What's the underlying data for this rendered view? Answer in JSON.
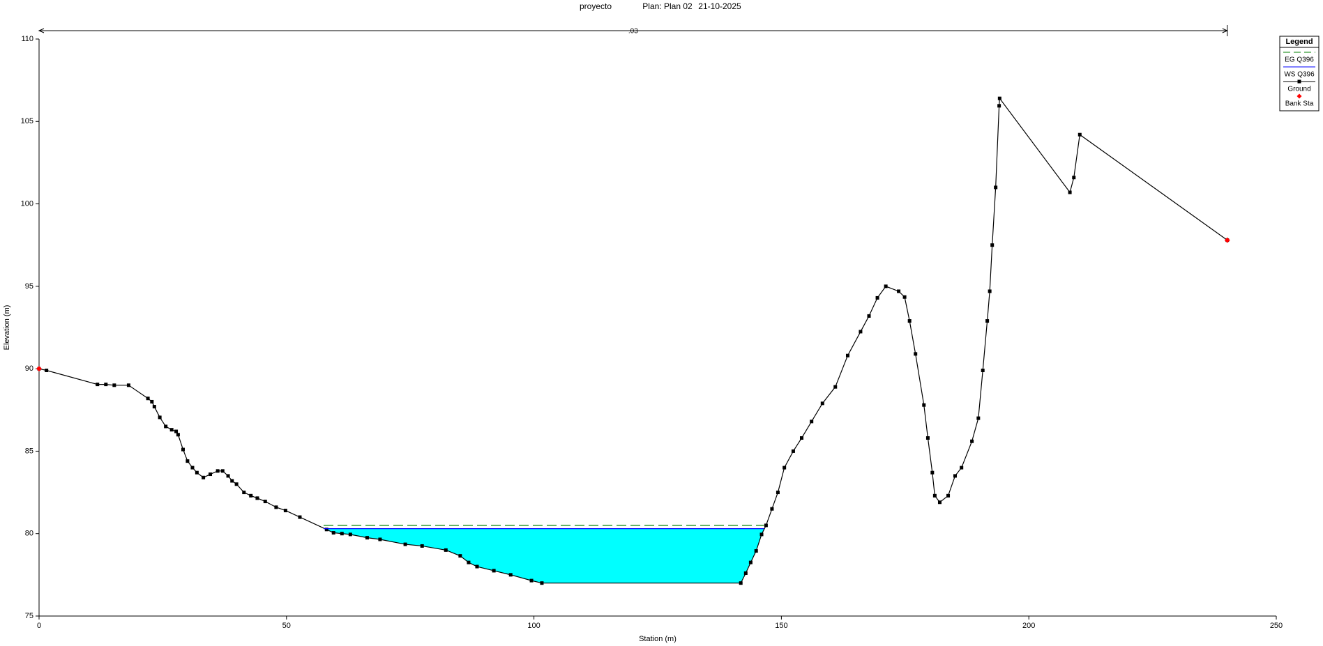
{
  "chart_data": {
    "type": "cross-section",
    "title_parts": [
      "proyecto",
      "Plan: Plan 02",
      "21-10-2025"
    ],
    "x_label": "Station (m)",
    "y_label": "Elevation (m)",
    "xlim": [
      0,
      250
    ],
    "xticks": [
      0,
      50,
      100,
      150,
      200,
      250
    ],
    "ylim": [
      75,
      110
    ],
    "yticks": [
      75,
      80,
      85,
      90,
      95,
      100,
      105,
      110
    ],
    "legend_title": "Legend",
    "legend_position": "upper right",
    "manning_n": {
      "label": ".03",
      "start": 0,
      "end": 240.1
    },
    "series": [
      {
        "name": "EG Q396",
        "color": "#008000",
        "style": "dashed",
        "x": [
          57.5,
          146.5
        ],
        "values": [
          80.5,
          80.5
        ]
      },
      {
        "name": "WS Q396",
        "color": "#0000ff",
        "fill": "#00ffff",
        "x": [
          57.5,
          146.5
        ],
        "values": [
          80.3,
          80.3
        ]
      },
      {
        "name": "Ground",
        "color": "#000000",
        "x": [
          0,
          1.5,
          11.8,
          13.5,
          15.2,
          18.1,
          22,
          22.8,
          23.3,
          24.4,
          25.6,
          26.8,
          27.7,
          28.1,
          29.1,
          30,
          31,
          31.9,
          33.2,
          34.6,
          36.1,
          37.1,
          38.2,
          39,
          39.9,
          41.4,
          42.8,
          44.1,
          45.7,
          47.9,
          49.8,
          52.7,
          58.1,
          59.5,
          61.2,
          62.9,
          66.3,
          68.9,
          74,
          77.4,
          82.2,
          85.1,
          86.8,
          88.5,
          91.9,
          95.3,
          99.5,
          101.6,
          141.8,
          142.8,
          143.8,
          144.9,
          146,
          146.9,
          148.1,
          149.3,
          150.6,
          152.4,
          154.1,
          156.1,
          158.3,
          160.9,
          163.4,
          166,
          167.7,
          169.4,
          171.1,
          173.7,
          174.9,
          175.9,
          177.1,
          178.8,
          179.6,
          180.5,
          181,
          182,
          183.7,
          185.1,
          186.4,
          188.5,
          189.8,
          190.7,
          191.6,
          192.1,
          192.6,
          193.3,
          194,
          194.1,
          208.3,
          209.1,
          210.3,
          240.1
        ],
        "values": [
          90.0,
          89.9,
          89.05,
          89.05,
          89.0,
          89.0,
          88.2,
          88.0,
          87.7,
          87.05,
          86.5,
          86.3,
          86.2,
          86.0,
          85.1,
          84.4,
          84.0,
          83.7,
          83.4,
          83.6,
          83.8,
          83.8,
          83.5,
          83.2,
          83.0,
          82.5,
          82.3,
          82.15,
          81.95,
          81.6,
          81.4,
          81.0,
          80.25,
          80.05,
          80.0,
          79.95,
          79.75,
          79.65,
          79.35,
          79.25,
          79.0,
          78.65,
          78.25,
          78.0,
          77.75,
          77.5,
          77.15,
          77.0,
          77.0,
          77.6,
          78.25,
          78.95,
          79.95,
          80.5,
          81.5,
          82.5,
          84.0,
          85.0,
          85.8,
          86.8,
          87.9,
          88.9,
          90.8,
          92.25,
          93.2,
          94.3,
          95.0,
          94.7,
          94.35,
          92.9,
          90.9,
          87.8,
          85.8,
          83.7,
          82.3,
          81.9,
          82.3,
          83.5,
          84.0,
          85.6,
          87.0,
          89.9,
          92.9,
          94.7,
          97.5,
          101.0,
          105.95,
          106.4,
          100.7,
          101.6,
          104.2,
          97.8
        ]
      },
      {
        "name": "Bank Sta",
        "color": "#ff0000",
        "x": [
          0,
          240.1
        ],
        "values": [
          90.0,
          97.8
        ]
      }
    ]
  }
}
